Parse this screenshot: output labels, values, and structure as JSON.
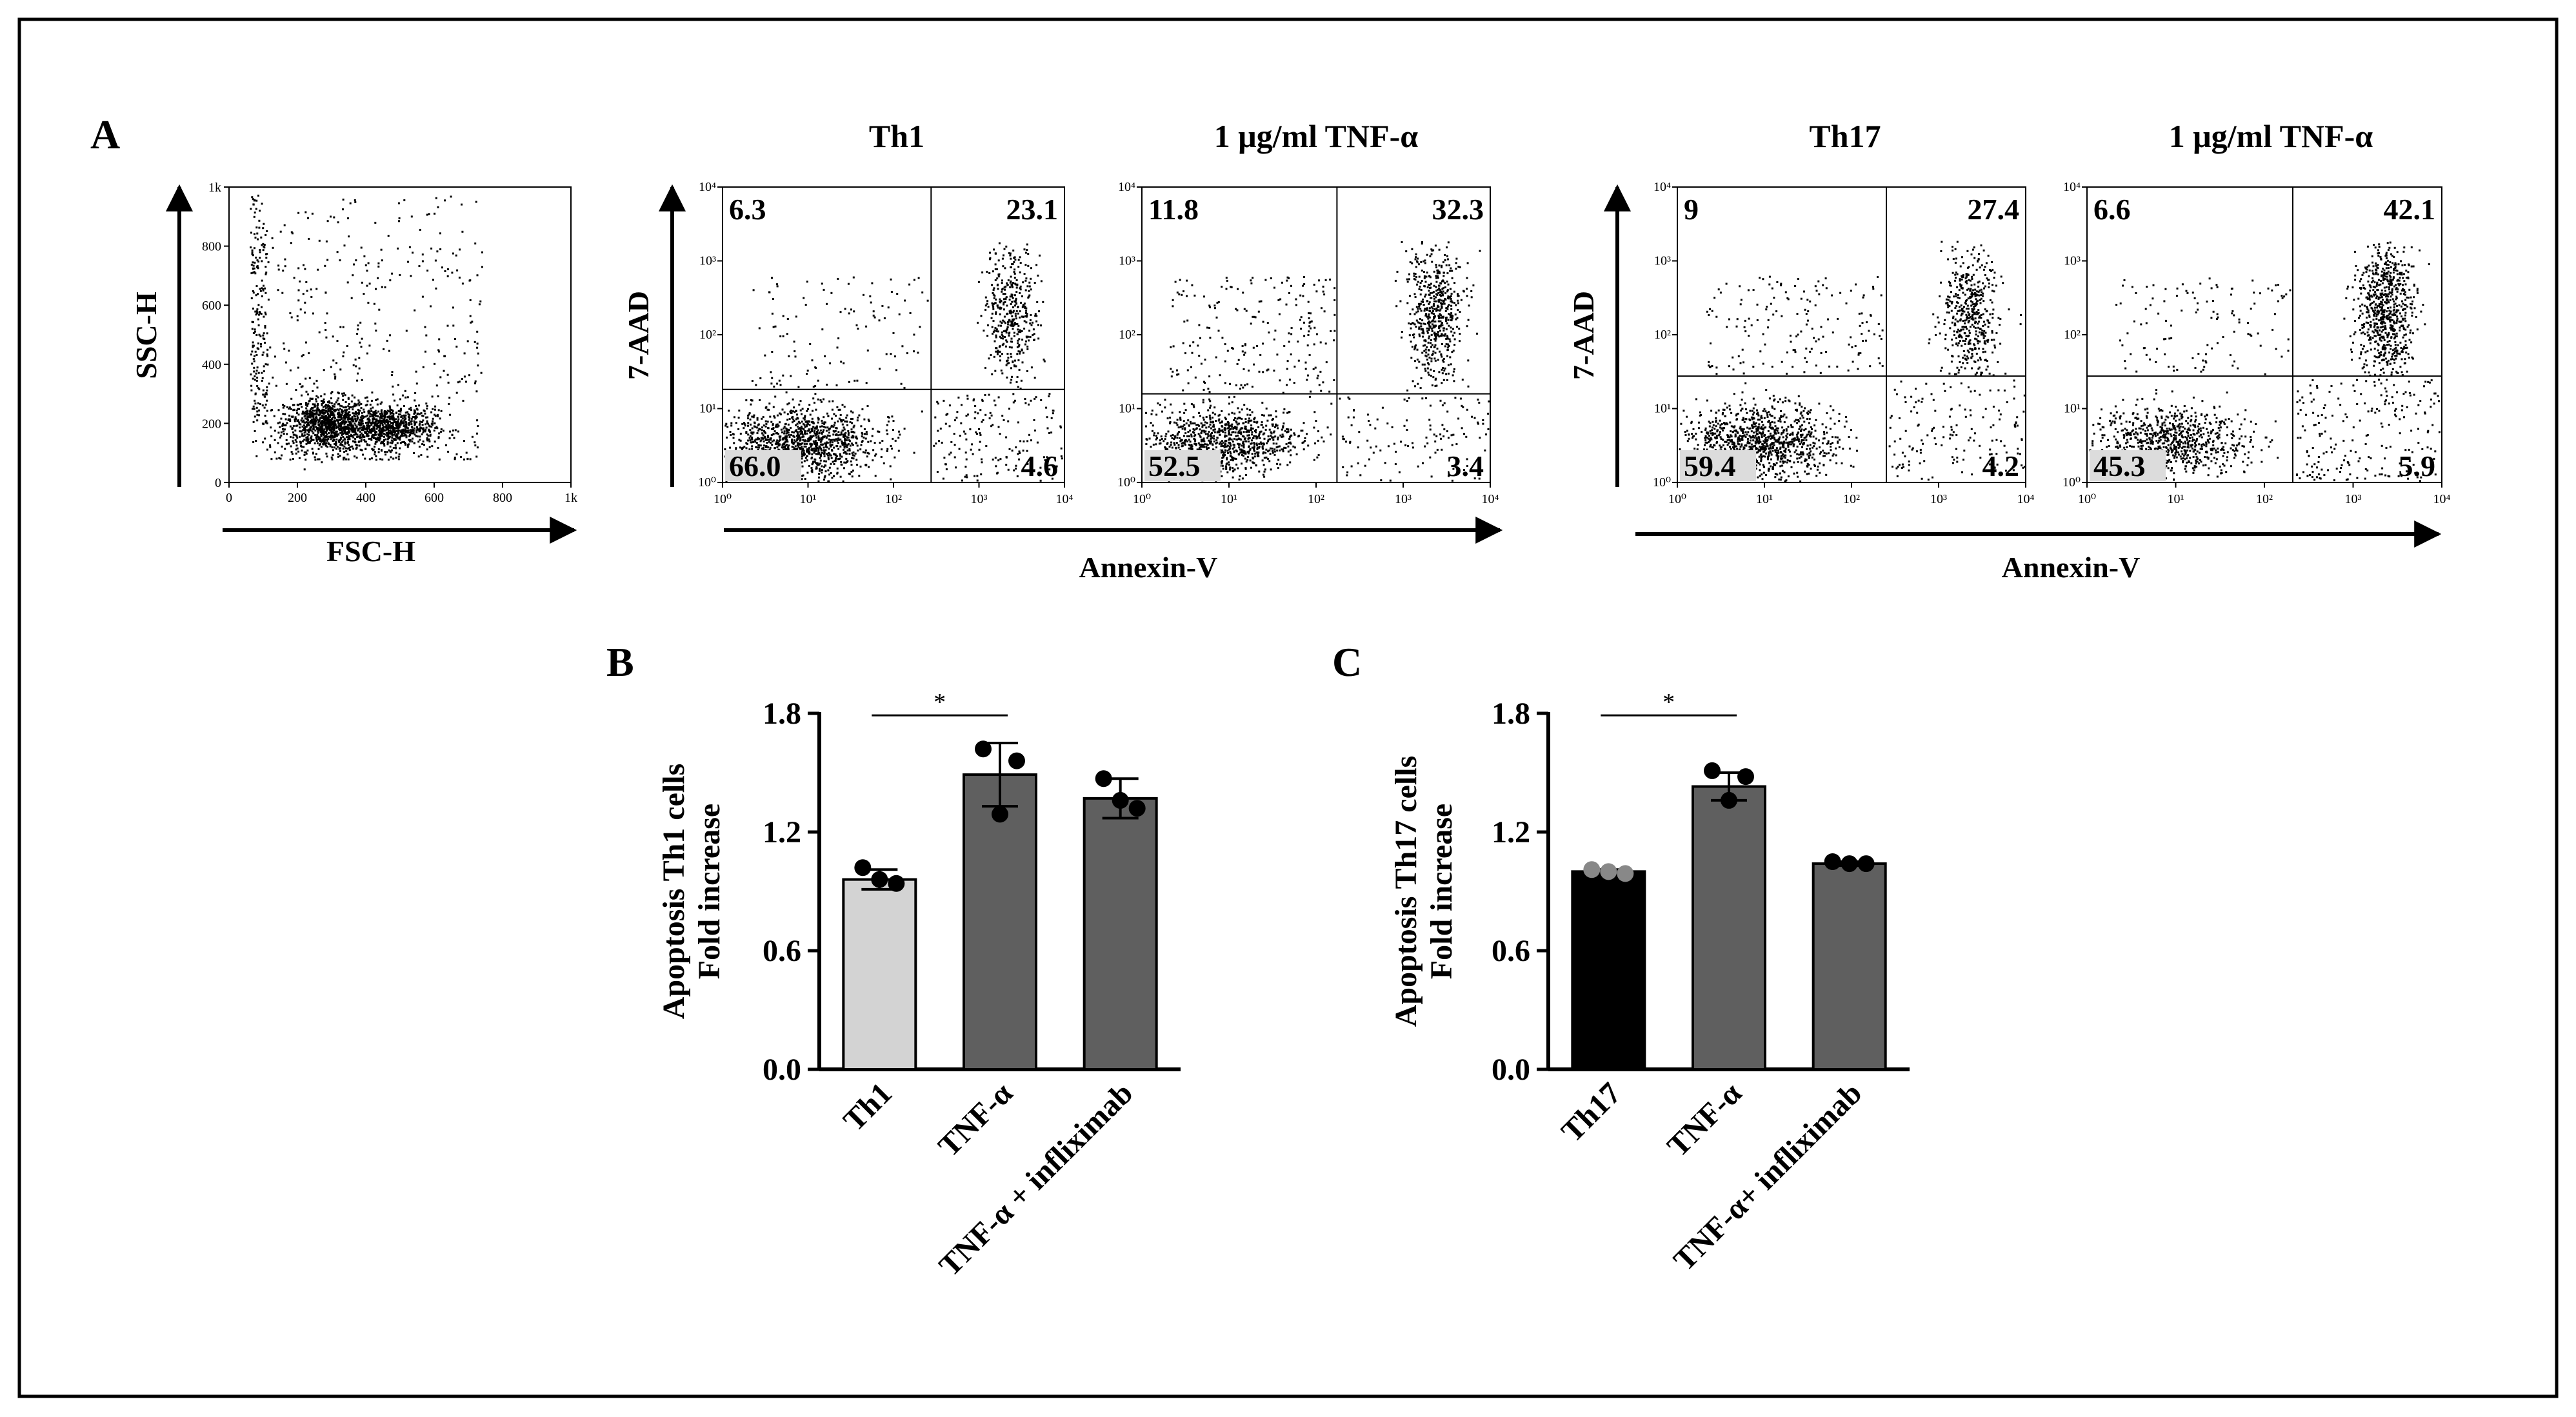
{
  "panel_letters": {
    "a": "A",
    "b": "B",
    "c": "C"
  },
  "colors": {
    "black": "#000000",
    "dark_gray_bar": "#5f5f5f",
    "light_gray_bar": "#d3d3d3",
    "point_gray": "#888888",
    "frame": "#000000"
  },
  "chart_data": [
    {
      "type": "scatter",
      "panel": "A",
      "kind": "flow-cytometry-gating",
      "xlabel": "FSC-H",
      "ylabel": "SSC-H",
      "xlim": [
        0,
        1000
      ],
      "ylim": [
        0,
        1000
      ],
      "xticks": [
        "0",
        "200",
        "400",
        "600",
        "800",
        "1k"
      ],
      "yticks": [
        "0",
        "200",
        "400",
        "600",
        "800",
        "1k"
      ],
      "populations": [
        {
          "center": [
            280,
            200
          ],
          "spread": [
            60,
            45
          ],
          "count": 900
        },
        {
          "center": [
            460,
            190
          ],
          "spread": [
            70,
            35
          ],
          "count": 800
        },
        {
          "center": [
            400,
            250
          ],
          "spread": [
            260,
            180
          ],
          "count": 500
        }
      ]
    },
    {
      "type": "scatter",
      "panel": "A",
      "kind": "flow-cytometry-quadrant",
      "title": "Th1",
      "xlabel": "Annexin-V",
      "ylabel": "7-AAD",
      "xlim": [
        1,
        10000
      ],
      "ylim": [
        1,
        10000
      ],
      "log_scale": true,
      "quadrants": {
        "upper_left": "6.3",
        "upper_right": "23.1",
        "lower_left": "66.0",
        "lower_right": "4.6"
      }
    },
    {
      "type": "scatter",
      "panel": "A",
      "kind": "flow-cytometry-quadrant",
      "title": "1 μg/ml TNF-α",
      "xlabel": "Annexin-V",
      "ylabel": "7-AAD",
      "xlim": [
        1,
        10000
      ],
      "ylim": [
        1,
        10000
      ],
      "log_scale": true,
      "quadrants": {
        "upper_left": "11.8",
        "upper_right": "32.3",
        "lower_left": "52.5",
        "lower_right": "3.4"
      }
    },
    {
      "type": "scatter",
      "panel": "A",
      "kind": "flow-cytometry-quadrant",
      "title": "Th17",
      "xlabel": "Annexin-V",
      "ylabel": "7-AAD",
      "xlim": [
        1,
        10000
      ],
      "ylim": [
        1,
        10000
      ],
      "log_scale": true,
      "quadrants": {
        "upper_left": "9",
        "upper_right": "27.4",
        "lower_left": "59.4",
        "lower_right": "4.2"
      }
    },
    {
      "type": "scatter",
      "panel": "A",
      "kind": "flow-cytometry-quadrant",
      "title": "1 μg/ml TNF-α",
      "xlabel": "Annexin-V",
      "ylabel": "7-AAD",
      "xlim": [
        1,
        10000
      ],
      "ylim": [
        1,
        10000
      ],
      "log_scale": true,
      "quadrants": {
        "upper_left": "6.6",
        "upper_right": "42.1",
        "lower_left": "45.3",
        "lower_right": "5.9"
      }
    },
    {
      "type": "bar",
      "panel": "B",
      "categories": [
        "Th1",
        "TNF-α",
        "TNF-α + infliximab"
      ],
      "values": [
        0.96,
        1.49,
        1.37
      ],
      "errors": [
        0.05,
        0.16,
        0.1
      ],
      "points": [
        [
          1.02,
          0.94,
          0.96
        ],
        [
          1.62,
          1.56,
          1.29
        ],
        [
          1.47,
          1.32,
          1.36
        ]
      ],
      "bar_colors": [
        "#d3d3d3",
        "#5f5f5f",
        "#5f5f5f"
      ],
      "ylabel_line1": "Apoptosis Th1 cells",
      "ylabel_line2": "Fold increase",
      "ylim": [
        0,
        1.8
      ],
      "yticks": [
        "0.0",
        "0.6",
        "1.2",
        "1.8"
      ],
      "significance": {
        "from": 0,
        "to": 1,
        "label": "*"
      }
    },
    {
      "type": "bar",
      "panel": "C",
      "categories": [
        "Th17",
        "TNF-α",
        "TNF-α+ infliximab"
      ],
      "values": [
        1.0,
        1.43,
        1.04
      ],
      "errors": [
        0.01,
        0.07,
        0.01
      ],
      "points": [
        [
          1.01,
          0.99,
          1.0
        ],
        [
          1.51,
          1.48,
          1.36
        ],
        [
          1.05,
          1.04,
          1.04
        ]
      ],
      "bar_colors": [
        "#000000",
        "#5f5f5f",
        "#5f5f5f"
      ],
      "point_colors": [
        "#888888",
        "#000000",
        "#000000"
      ],
      "ylabel_line1": "Apoptosis Th17 cells",
      "ylabel_line2": "Fold increase",
      "ylim": [
        0,
        1.8
      ],
      "yticks": [
        "0.0",
        "0.6",
        "1.2",
        "1.8"
      ],
      "significance": {
        "from": 0,
        "to": 1,
        "label": "*"
      }
    }
  ]
}
